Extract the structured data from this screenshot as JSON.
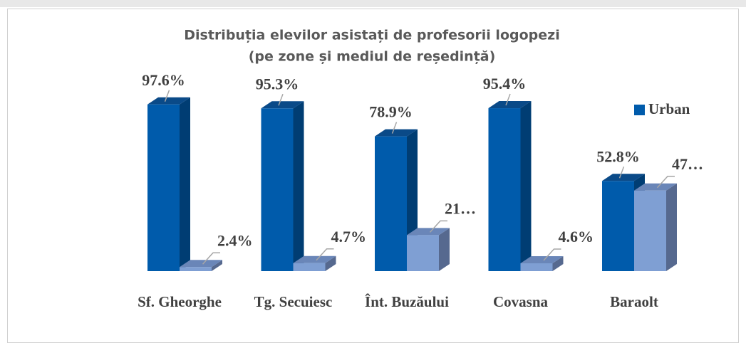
{
  "chart_data": {
    "type": "bar3d",
    "title": "Distribuția elevilor asistați de profesorii logopezi",
    "subtitle": "(pe zone și mediul de reședință)",
    "categories": [
      "Sf. Gheorghe",
      "Tg. Secuiesc",
      "Înt. Buzăului",
      "Covasna",
      "Baraolt"
    ],
    "series": [
      {
        "name": "Urban",
        "color": "#005bab",
        "values": [
          97.6,
          95.3,
          78.9,
          95.4,
          52.8
        ],
        "value_labels": [
          "97.6%",
          "95.3%",
          "78.9%",
          "95.4%",
          "52.8%"
        ]
      },
      {
        "color": "#7f9fd3",
        "values": [
          2.4,
          4.7,
          21.1,
          4.6,
          47.2
        ],
        "value_labels": [
          "2.4%",
          "4.7%",
          "21…",
          "4.6%",
          "47…"
        ]
      }
    ],
    "ylim": [
      0,
      100
    ],
    "legend": "right"
  }
}
